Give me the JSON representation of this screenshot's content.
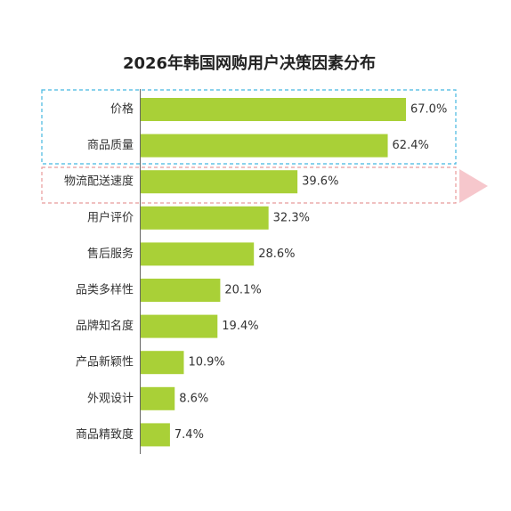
{
  "chart_data": {
    "type": "hbar",
    "title": "2026年韩国网购用户决策因素分布",
    "categories": [
      "价格",
      "商品质量",
      "物流配送速度",
      "用户评价",
      "售后服务",
      "品类多样性",
      "品牌知名度",
      "产品新颖性",
      "外观设计",
      "商品精致度"
    ],
    "values": [
      67.0,
      62.4,
      39.6,
      32.3,
      28.6,
      20.1,
      19.4,
      10.9,
      8.6,
      7.4
    ],
    "value_labels": [
      "67.0%",
      "62.4%",
      "39.6%",
      "32.3%",
      "28.6%",
      "20.1%",
      "19.4%",
      "10.9%",
      "8.6%",
      "7.4%"
    ],
    "color": "#a9d037"
  }
}
